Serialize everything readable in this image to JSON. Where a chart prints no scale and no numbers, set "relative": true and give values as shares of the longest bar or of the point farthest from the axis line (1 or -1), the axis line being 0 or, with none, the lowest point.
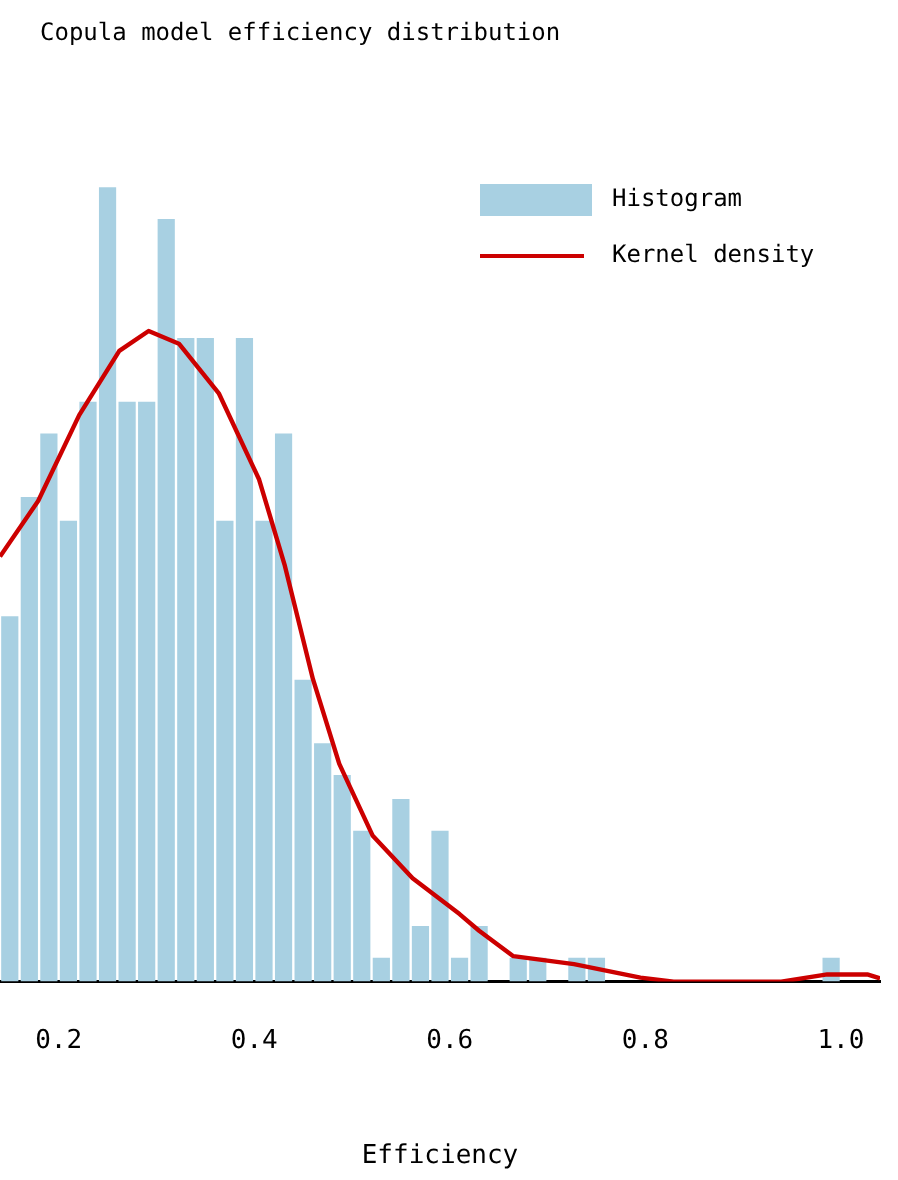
{
  "chart_data": {
    "type": "histogram",
    "title": "Copula model efficiency distribution",
    "xlabel": "Efficiency",
    "relative": true,
    "xlim": [
      0.14,
      1.04
    ],
    "xticks": [
      {
        "value": 0.2,
        "label": "0.2"
      },
      {
        "value": 0.4,
        "label": "0.4"
      },
      {
        "value": 0.6,
        "label": "0.6"
      },
      {
        "value": 0.8,
        "label": "0.8"
      },
      {
        "value": 1,
        "label": "1.0"
      }
    ],
    "grid": false,
    "legend": "top right",
    "bins": [
      0.14,
      0.16,
      0.18,
      0.2,
      0.22,
      0.24,
      0.26,
      0.28,
      0.3,
      0.32,
      0.34,
      0.36,
      0.38,
      0.4,
      0.42,
      0.44,
      0.46,
      0.48,
      0.5,
      0.52,
      0.54,
      0.56,
      0.58,
      0.6,
      0.62,
      0.64,
      0.66,
      0.68,
      0.7,
      0.72,
      0.74,
      0.76,
      0.78,
      0.8,
      0.82,
      0.84,
      0.86,
      0.88,
      0.9,
      0.92,
      0.94,
      0.96,
      0.98,
      1.0
    ],
    "series": [
      {
        "name": "Histogram",
        "color": "#a8d0e2",
        "values": [
          0.46,
          0.61,
          0.69,
          0.58,
          0.73,
          1,
          0.73,
          0.73,
          0.96,
          0.81,
          0.81,
          0.58,
          0.81,
          0.58,
          0.69,
          0.38,
          0.3,
          0.26,
          0.19,
          0.03,
          0.23,
          0.07,
          0.19,
          0.03,
          0.07,
          0,
          0.03,
          0.03,
          0,
          0.03,
          0.03,
          0,
          0,
          0,
          0,
          0,
          0,
          0,
          0,
          0,
          0,
          0,
          0.03
        ]
      },
      {
        "name": "Kernel density",
        "type": "line",
        "color": "#cc0000",
        "x": [
          0.14,
          0.179,
          0.221,
          0.262,
          0.292,
          0.323,
          0.364,
          0.405,
          0.431,
          0.46,
          0.487,
          0.521,
          0.562,
          0.61,
          0.63,
          0.665,
          0.727,
          0.795,
          0.829,
          0.939,
          0.986,
          1.027,
          1.04
        ],
        "values": [
          0.535,
          0.605,
          0.713,
          0.794,
          0.819,
          0.803,
          0.74,
          0.632,
          0.525,
          0.381,
          0.274,
          0.184,
          0.13,
          0.085,
          0.064,
          0.032,
          0.022,
          0.005,
          0,
          0,
          0.009,
          0.009,
          0.004
        ]
      }
    ]
  }
}
